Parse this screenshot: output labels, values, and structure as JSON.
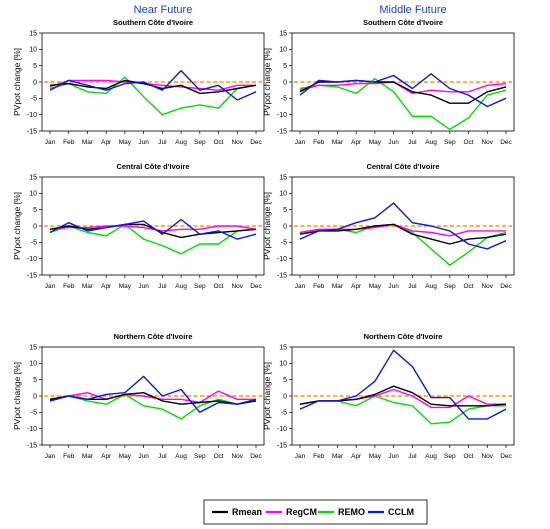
{
  "columns": [
    "Near Future",
    "Middle Future"
  ],
  "colors": {
    "Rmean": "#000000",
    "RegCM": "#ff00ff",
    "REMO": "#00e000",
    "CCLM": "#0a18e6",
    "zero_line": "#ff9900",
    "title": "#1a3fd6"
  },
  "chart_data": [
    {
      "type": "line",
      "title": "Southern Côte d'Ivoire",
      "column": "Near Future",
      "xlabel": "",
      "ylabel": "PVpot change [%]",
      "ylim": [
        -15,
        15
      ],
      "yticks": [
        15,
        10,
        5,
        0,
        -5,
        -10,
        -15
      ],
      "categories": [
        "Jan",
        "Feb",
        "Mar",
        "Apr",
        "May",
        "Jun",
        "Jul",
        "Aug",
        "Sep",
        "Oct",
        "Nov",
        "Dec"
      ],
      "reference_line": 0,
      "series": [
        {
          "name": "Rmean",
          "values": [
            -1,
            -0.5,
            -1.5,
            -2,
            0.5,
            -0.5,
            -2,
            -1,
            -3.5,
            -3,
            -2,
            -1
          ]
        },
        {
          "name": "RegCM",
          "values": [
            -1.5,
            0.5,
            0.5,
            0.5,
            0,
            -0.5,
            -1,
            -1.5,
            -2,
            -2.5,
            -1,
            -1
          ]
        },
        {
          "name": "REMO",
          "values": [
            -2,
            -0.5,
            -3,
            -3.5,
            1.5,
            -4.5,
            -10,
            -8,
            -7,
            -8,
            -2,
            -1
          ]
        },
        {
          "name": "CCLM",
          "values": [
            -2.5,
            0.5,
            -1,
            -2.5,
            -0.5,
            0,
            -2.5,
            3.5,
            -2.5,
            -1,
            -5.5,
            -3
          ]
        }
      ]
    },
    {
      "type": "line",
      "title": "Southern Côte d'Ivoire",
      "column": "Middle Future",
      "xlabel": "",
      "ylabel": "PVpot change [%]",
      "ylim": [
        -15,
        15
      ],
      "yticks": [
        15,
        10,
        5,
        0,
        -5,
        -10,
        -15
      ],
      "categories": [
        "Jan",
        "Feb",
        "Mar",
        "Apr",
        "May",
        "Jun",
        "Jul",
        "Aug",
        "Sep",
        "Oct",
        "Nov",
        "Dec"
      ],
      "reference_line": 0,
      "series": [
        {
          "name": "Rmean",
          "values": [
            -3,
            0,
            0,
            0.5,
            0,
            0,
            -3,
            -4,
            -6.5,
            -6.5,
            -3,
            -1.5
          ]
        },
        {
          "name": "RegCM",
          "values": [
            -2.5,
            -1,
            -1,
            -0.5,
            -0.5,
            0,
            -3.5,
            -2.5,
            -3,
            -3,
            -1,
            -0.5
          ]
        },
        {
          "name": "REMO",
          "values": [
            -2,
            -1,
            -1.5,
            -3.5,
            1,
            -3,
            -10.5,
            -10.5,
            -14.5,
            -11,
            -4,
            -2.5
          ]
        },
        {
          "name": "CCLM",
          "values": [
            -4,
            0.5,
            0,
            0.5,
            0,
            2,
            -2,
            2.5,
            -2,
            -4,
            -7.5,
            -5
          ]
        }
      ]
    },
    {
      "type": "line",
      "title": "Central Côte d'Ivoire",
      "column": "Near Future",
      "xlabel": "",
      "ylabel": "PVpot change [%]",
      "ylim": [
        -15,
        15
      ],
      "yticks": [
        15,
        10,
        5,
        0,
        -5,
        -10,
        -15
      ],
      "categories": [
        "Jan",
        "Feb",
        "Mar",
        "Apr",
        "May",
        "Jun",
        "Jul",
        "Aug",
        "Sep",
        "Oct",
        "Nov",
        "Dec"
      ],
      "reference_line": 0,
      "series": [
        {
          "name": "Rmean",
          "values": [
            -1,
            0,
            -1,
            -0.5,
            0.5,
            0.5,
            -2,
            -3.5,
            -2.5,
            -2,
            -1.5,
            -1
          ]
        },
        {
          "name": "RegCM",
          "values": [
            -1,
            -0.5,
            -0.5,
            0,
            0,
            -0.5,
            -1.5,
            -1,
            -1,
            0,
            0,
            -1
          ]
        },
        {
          "name": "REMO",
          "values": [
            -2,
            0,
            -2,
            -3,
            0.5,
            -4,
            -6,
            -8.5,
            -5.5,
            -5.5,
            -1.5,
            -1
          ]
        },
        {
          "name": "CCLM",
          "values": [
            -2,
            1,
            -1.5,
            -0.5,
            0.5,
            1.5,
            -2.5,
            2,
            -2.5,
            -1.5,
            -4,
            -2.5
          ]
        }
      ]
    },
    {
      "type": "line",
      "title": "Central Côte d'Ivoire",
      "column": "Middle Future",
      "xlabel": "",
      "ylabel": "PVpot change [%]",
      "ylim": [
        -15,
        15
      ],
      "yticks": [
        15,
        10,
        5,
        0,
        -5,
        -10,
        -15
      ],
      "categories": [
        "Jan",
        "Feb",
        "Mar",
        "Apr",
        "May",
        "Jun",
        "Jul",
        "Aug",
        "Sep",
        "Oct",
        "Nov",
        "Dec"
      ],
      "reference_line": 0,
      "series": [
        {
          "name": "Rmean",
          "values": [
            -2.5,
            -1.5,
            -1.5,
            -1,
            0,
            0.5,
            -2.5,
            -4,
            -5.5,
            -4,
            -3.5,
            -2.5
          ]
        },
        {
          "name": "RegCM",
          "values": [
            -2,
            -1,
            -1,
            -1,
            -0.5,
            0.5,
            -1.5,
            -2,
            -3,
            -1.5,
            -1.5,
            -1.5
          ]
        },
        {
          "name": "REMO",
          "values": [
            -2.5,
            -1.5,
            -1,
            -2,
            0,
            0.5,
            -2,
            -7,
            -12,
            -8,
            -3.5,
            -2
          ]
        },
        {
          "name": "CCLM",
          "values": [
            -4,
            -1.5,
            -1,
            1,
            2.5,
            7,
            1,
            0,
            -1.5,
            -5.5,
            -7,
            -4.5
          ]
        }
      ]
    },
    {
      "type": "line",
      "title": "Northern Côte d'Ivoire",
      "column": "Near Future",
      "xlabel": "",
      "ylabel": "PVpot change [%]",
      "ylim": [
        -15,
        15
      ],
      "yticks": [
        15,
        10,
        5,
        0,
        -5,
        -10,
        -15
      ],
      "categories": [
        "Jan",
        "Feb",
        "Mar",
        "Apr",
        "May",
        "Jun",
        "Jul",
        "Aug",
        "Sep",
        "Oct",
        "Nov",
        "Dec"
      ],
      "reference_line": 0,
      "series": [
        {
          "name": "Rmean",
          "values": [
            -1,
            0,
            -1,
            -1,
            0.5,
            1,
            -1.5,
            -2.5,
            -2,
            -1.5,
            -2.5,
            -1.5
          ]
        },
        {
          "name": "RegCM",
          "values": [
            -1.5,
            0,
            1,
            -1,
            0.5,
            0,
            -1,
            -1,
            -2,
            1.5,
            -1,
            -1
          ]
        },
        {
          "name": "REMO",
          "values": [
            -1,
            0,
            -1.5,
            -2.5,
            0.5,
            -3,
            -4,
            -7,
            -3,
            -1,
            -2.5,
            -1.5
          ]
        },
        {
          "name": "CCLM",
          "values": [
            -1.5,
            0,
            -1,
            0.5,
            1,
            6,
            0,
            2,
            -5,
            -2,
            -2.5,
            -1
          ]
        }
      ]
    },
    {
      "type": "line",
      "title": "Northern Côte d'Ivoire",
      "column": "Middle Future",
      "xlabel": "",
      "ylabel": "PVpot change [%]",
      "ylim": [
        -15,
        15
      ],
      "yticks": [
        15,
        10,
        5,
        0,
        -5,
        -10,
        -15
      ],
      "categories": [
        "Jan",
        "Feb",
        "Mar",
        "Apr",
        "May",
        "Jun",
        "Jul",
        "Aug",
        "Sep",
        "Oct",
        "Nov",
        "Dec"
      ],
      "reference_line": 0,
      "series": [
        {
          "name": "Rmean",
          "values": [
            -2.5,
            -1.5,
            -1.5,
            -1,
            0.5,
            3,
            1,
            -2.5,
            -3,
            -3,
            -3,
            -2.5
          ]
        },
        {
          "name": "RegCM",
          "values": [
            -2.5,
            -1.5,
            -1.5,
            -1,
            0,
            2,
            0,
            -3.5,
            -3.5,
            0,
            -2.5,
            -2.5
          ]
        },
        {
          "name": "REMO",
          "values": [
            -2.5,
            -1.5,
            -1.5,
            -3,
            0,
            -2,
            -3,
            -8.5,
            -8,
            -4,
            -3,
            -3
          ]
        },
        {
          "name": "CCLM",
          "values": [
            -4,
            -1.5,
            -1.5,
            0,
            4.5,
            14,
            9,
            -0.5,
            -0.5,
            -7,
            -7,
            -4
          ]
        }
      ]
    }
  ],
  "legend": {
    "entries": [
      "Rmean",
      "RegCM",
      "REMO",
      "CCLM"
    ],
    "placement": "bottom-center"
  }
}
